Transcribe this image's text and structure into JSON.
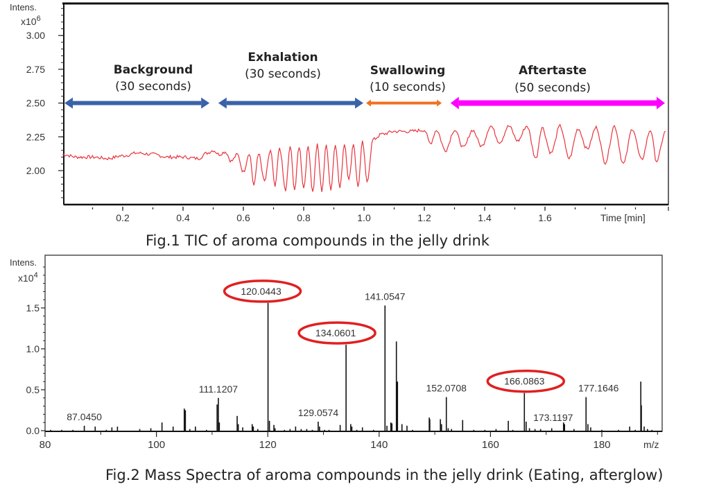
{
  "chart_data": [
    {
      "type": "line",
      "title": "Fig.1 TIC of aroma compounds in the jelly drink",
      "ylabel_line1": "Intens.",
      "ylabel_multiplier": "x10",
      "ylabel_exponent": "6",
      "xlabel": "Time  [min]",
      "xlim": [
        0.0,
        2.01
      ],
      "ylim": [
        1.77,
        3.24
      ],
      "x_ticks": [
        "0.2",
        "0.4",
        "0.6",
        "0.8",
        "1.0",
        "1.2",
        "1.4",
        "1.6"
      ],
      "x_tick_values": [
        0.2,
        0.4,
        0.6,
        0.8,
        1.0,
        1.2,
        1.4,
        1.6
      ],
      "y_ticks": [
        "3.00",
        "2.75",
        "2.50",
        "2.25",
        "2.00"
      ],
      "y_tick_values": [
        3.0,
        2.75,
        2.5,
        2.25,
        2.0
      ],
      "line_color": "#e8343c",
      "series_description_points": {
        "x": [
          0.0,
          0.05,
          0.1,
          0.15,
          0.2,
          0.25,
          0.3,
          0.35,
          0.4,
          0.45,
          0.48,
          0.5,
          0.52,
          0.54,
          0.56,
          0.58,
          0.6,
          0.62,
          0.635,
          0.65,
          0.67,
          0.69,
          0.705,
          0.72,
          0.74,
          0.755,
          0.77,
          0.785,
          0.8,
          0.815,
          0.83,
          0.845,
          0.86,
          0.875,
          0.89,
          0.905,
          0.92,
          0.935,
          0.95,
          0.965,
          0.98,
          0.995,
          1.01,
          1.03,
          1.06,
          1.1,
          1.15,
          1.2,
          1.22,
          1.24,
          1.27,
          1.3,
          1.33,
          1.36,
          1.39,
          1.42,
          1.45,
          1.48,
          1.51,
          1.54,
          1.57,
          1.59,
          1.62,
          1.65,
          1.68,
          1.71,
          1.74,
          1.77,
          1.8,
          1.83,
          1.86,
          1.89,
          1.92,
          1.95,
          1.97,
          2.0
        ],
        "y": [
          2.12,
          2.1,
          2.1,
          2.09,
          2.11,
          2.13,
          2.12,
          2.1,
          2.1,
          2.09,
          2.13,
          2.15,
          2.12,
          2.14,
          2.07,
          2.12,
          1.99,
          2.13,
          1.89,
          2.13,
          1.92,
          2.15,
          1.88,
          2.17,
          1.85,
          2.18,
          1.86,
          2.18,
          1.87,
          2.18,
          1.84,
          2.19,
          1.85,
          2.19,
          1.86,
          2.2,
          1.87,
          2.2,
          1.93,
          2.2,
          1.88,
          2.21,
          1.92,
          2.23,
          2.27,
          2.29,
          2.29,
          2.3,
          2.2,
          2.3,
          2.15,
          2.3,
          2.17,
          2.3,
          2.18,
          2.33,
          2.21,
          2.33,
          2.22,
          2.33,
          2.09,
          2.32,
          2.13,
          2.33,
          2.09,
          2.31,
          2.16,
          2.32,
          2.06,
          2.33,
          2.05,
          2.31,
          2.08,
          2.3,
          2.07,
          2.29
        ]
      },
      "annotations": [
        {
          "label": "Background",
          "duration": "(30 seconds)",
          "x_start": 0.0,
          "x_end": 0.49,
          "color": "#3a62a8"
        },
        {
          "label": "Exhalation",
          "duration": "(30 seconds)",
          "x_start": 0.51,
          "x_end": 1.0,
          "color": "#3a62a8"
        },
        {
          "label": "Swallowing",
          "duration": "(10 seconds)",
          "x_start": 1.0,
          "x_end": 1.26,
          "color": "#f07020"
        },
        {
          "label": "Aftertaste",
          "duration": "(50 seconds)",
          "x_start": 1.28,
          "x_end": 2.0,
          "color": "#ff00ff"
        }
      ],
      "arrow_level": 2.5
    },
    {
      "type": "bar",
      "title": "Fig.2 Mass Spectra of aroma compounds in the jelly drink (Eating, afterglow)",
      "ylabel_line1": "Intens.",
      "ylabel_multiplier": "x10",
      "ylabel_exponent": "4",
      "xlabel": "m/z",
      "xlim": [
        80,
        191
      ],
      "ylim": [
        0.0,
        2.1
      ],
      "x_ticks": [
        "80",
        "100",
        "120",
        "140",
        "160",
        "180"
      ],
      "x_tick_values": [
        80,
        100,
        120,
        140,
        160,
        180
      ],
      "y_ticks": [
        "0.0",
        "0.5",
        "1.0",
        "1.5"
      ],
      "y_tick_values": [
        0.0,
        0.5,
        1.0,
        1.5
      ],
      "labeled_peaks": [
        {
          "mz": 87.045,
          "label": "87.0450",
          "intensity": 0.06,
          "circled": false
        },
        {
          "mz": 111.1207,
          "label": "111.1207",
          "intensity": 0.4,
          "circled": false
        },
        {
          "mz": 120.0443,
          "label": "120.0443",
          "intensity": 1.56,
          "circled": true
        },
        {
          "mz": 129.0574,
          "label": "129.0574",
          "intensity": 0.11,
          "circled": false
        },
        {
          "mz": 134.0601,
          "label": "134.0601",
          "intensity": 1.05,
          "circled": true
        },
        {
          "mz": 141.0547,
          "label": "141.0547",
          "intensity": 1.53,
          "circled": false
        },
        {
          "mz": 152.0708,
          "label": "152.0708",
          "intensity": 0.41,
          "circled": false
        },
        {
          "mz": 166.0863,
          "label": "166.0863",
          "intensity": 0.46,
          "circled": true
        },
        {
          "mz": 173.1197,
          "label": "173.1197",
          "intensity": 0.1,
          "circled": false
        },
        {
          "mz": 177.1646,
          "label": "177.1646",
          "intensity": 0.41,
          "circled": false
        }
      ],
      "unlabeled_peaks": {
        "mz": [
          81,
          83,
          85,
          89,
          91,
          92,
          93,
          97,
          99,
          101,
          103,
          105,
          105.2,
          106,
          107,
          109,
          110.9,
          111.3,
          114.5,
          114.7,
          115.5,
          117.2,
          117.4,
          118.2,
          120.3,
          121.1,
          121.3,
          123,
          124,
          125,
          126,
          127,
          128,
          129.3,
          130.2,
          131,
          133,
          134.9,
          135.1,
          136,
          137,
          139,
          141.4,
          142.1,
          142.3,
          143.1,
          143.3,
          144.1,
          145,
          146,
          149.0,
          149.1,
          151.0,
          151.2,
          152.4,
          153,
          155.0,
          157,
          159,
          161,
          163.2,
          164,
          166.4,
          167,
          168,
          169,
          171,
          173.3,
          175,
          177.5,
          178,
          180,
          183,
          185.0,
          186,
          187.0,
          187.1,
          187.6,
          188.2,
          189
        ],
        "intensity": [
          0.01,
          0.01,
          0.01,
          0.05,
          0.01,
          0.04,
          0.05,
          0.02,
          0.03,
          0.1,
          0.05,
          0.27,
          0.25,
          0.02,
          0.05,
          0.01,
          0.32,
          0.1,
          0.18,
          0.08,
          0.04,
          0.08,
          0.05,
          0.02,
          0.12,
          0.07,
          0.03,
          0.01,
          0.02,
          0.05,
          0.02,
          0.02,
          0.01,
          0.05,
          0.01,
          0.01,
          0.07,
          0.08,
          0.05,
          0.01,
          0.04,
          0.01,
          0.06,
          0.1,
          0.09,
          1.09,
          0.6,
          0.08,
          0.06,
          0.01,
          0.16,
          0.14,
          0.14,
          0.08,
          0.03,
          0.02,
          0.13,
          0.01,
          0.01,
          0.02,
          0.12,
          0.01,
          0.11,
          0.03,
          0.02,
          0.02,
          0.03,
          0.08,
          0.02,
          0.08,
          0.04,
          0.01,
          0.01,
          0.05,
          0.01,
          0.6,
          0.31,
          0.05,
          0.02,
          0.01
        ]
      },
      "circle_color": "#e02020"
    }
  ],
  "captions": {
    "fig1": "Fig.1 TIC of aroma compounds in the jelly drink",
    "fig2": "Fig.2 Mass Spectra of aroma compounds in the jelly drink (Eating, afterglow)"
  }
}
